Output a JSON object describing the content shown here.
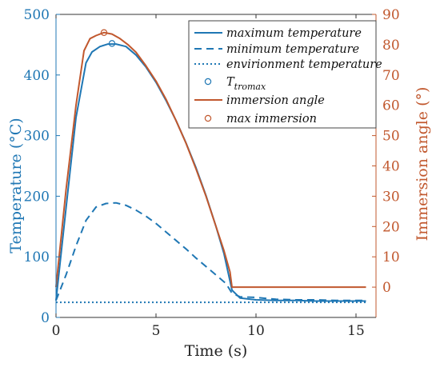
{
  "chart_data": {
    "type": "line",
    "xlabel": "Time (s)",
    "ylabel_left": "Temperature (°C)",
    "ylabel_right": "Immersion angle (°)",
    "xlim": [
      0,
      16
    ],
    "xticks": [
      0,
      5,
      10,
      15
    ],
    "ylim_left": [
      0,
      500
    ],
    "yticks_left": [
      0,
      100,
      200,
      300,
      400,
      500
    ],
    "ylim_right": [
      -10,
      90
    ],
    "yticks_right": [
      0,
      10,
      20,
      30,
      40,
      50,
      60,
      70,
      80,
      90
    ],
    "grid": false,
    "legend_position": "top-right",
    "colors": {
      "temperature": "#1f77b4",
      "immersion": "#c1582e"
    },
    "series": [
      {
        "name": "maximum temperature",
        "axis": "left",
        "style": "solid",
        "x": [
          0,
          0.5,
          1.0,
          1.5,
          1.8,
          2.2,
          2.6,
          3.0,
          3.5,
          4.0,
          4.5,
          5.0,
          5.5,
          6.0,
          6.5,
          7.0,
          7.5,
          8.0,
          8.4,
          8.8,
          9.2,
          10.0,
          11.0,
          12.0,
          13.0,
          14.0,
          15.5
        ],
        "y": [
          28,
          180,
          330,
          420,
          438,
          447,
          451,
          451,
          447,
          433,
          413,
          388,
          358,
          325,
          288,
          247,
          201,
          150,
          105,
          45,
          32,
          29,
          28,
          28,
          27,
          27,
          27
        ]
      },
      {
        "name": "minimum temperature",
        "axis": "left",
        "style": "dashed",
        "x": [
          0,
          0.5,
          1.0,
          1.5,
          2.0,
          2.5,
          3.0,
          3.5,
          4.0,
          4.5,
          5.0,
          5.5,
          6.0,
          6.5,
          7.0,
          7.5,
          8.0,
          8.5,
          8.8,
          9.2,
          10.0,
          11.0,
          12.0,
          13.0,
          14.0,
          15.5
        ],
        "y": [
          28,
          70,
          118,
          160,
          182,
          188,
          189,
          185,
          177,
          167,
          155,
          141,
          127,
          113,
          98,
          84,
          70,
          56,
          40,
          34,
          33,
          30,
          29,
          29,
          28,
          28
        ]
      },
      {
        "name": "envirionment temperature",
        "axis": "left",
        "style": "dotted",
        "x": [
          0,
          15.5
        ],
        "y": [
          25,
          25
        ]
      },
      {
        "name": "immersion angle",
        "axis": "right",
        "style": "solid",
        "x": [
          0,
          0.5,
          1.0,
          1.4,
          1.7,
          2.0,
          2.4,
          2.8,
          3.2,
          3.6,
          4.0,
          4.5,
          5.0,
          5.5,
          6.0,
          6.5,
          7.0,
          7.5,
          8.0,
          8.4,
          8.7,
          8.8,
          9.5,
          11.0,
          13.0,
          15.5
        ],
        "y": [
          0,
          32,
          60,
          78,
          82,
          83,
          84,
          83.5,
          82,
          80,
          77.5,
          73,
          68,
          62,
          55,
          47.5,
          39,
          30,
          20,
          12,
          5,
          0,
          0,
          0,
          0,
          0
        ]
      }
    ],
    "markers": [
      {
        "name": "T",
        "subscript": "tromax",
        "axis": "left",
        "x": 2.8,
        "y": 452
      },
      {
        "name": "max immersion",
        "axis": "right",
        "x": 2.4,
        "y": 84
      }
    ]
  }
}
